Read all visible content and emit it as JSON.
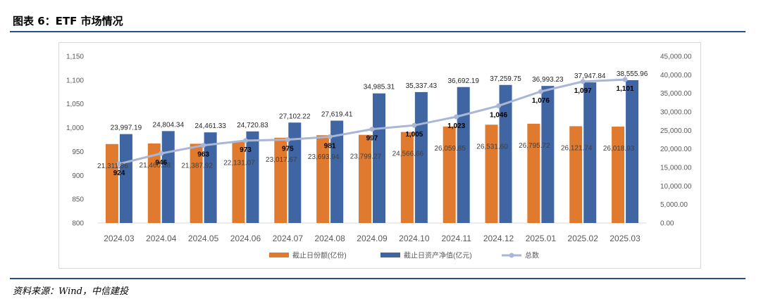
{
  "header": {
    "title": "图表 6：ETF 市场情况"
  },
  "footer": {
    "source": "资料来源：Wind，中信建投"
  },
  "colors": {
    "bar1": "#e07a2e",
    "bar2": "#3f65a3",
    "line": "#a9b6d6",
    "rule": "#2a5082"
  },
  "chart_data": {
    "type": "bar",
    "categories": [
      "2024.03",
      "2024.04",
      "2024.05",
      "2024.06",
      "2024.07",
      "2024.08",
      "2024.09",
      "2024.10",
      "2024.11",
      "2024.12",
      "2025.01",
      "2025.02",
      "2025.03"
    ],
    "series": [
      {
        "name": "截止日份额(亿份)",
        "type": "bar",
        "axis": "right",
        "values": [
          21311.86,
          21460.38,
          21387.92,
          22131.07,
          23017.67,
          23693.94,
          23799.27,
          24566.66,
          26059.85,
          26531.6,
          26795.72,
          26121.74,
          26018.93
        ],
        "labels": [
          "21,311.86",
          "21,460.38",
          "21,387.92",
          "22,131.07",
          "23,017.67",
          "23,693.94",
          "23,799.27",
          "24,566.66",
          "26,059.85",
          "26,531.60",
          "26,795.72",
          "26,121.74",
          "26,018.93"
        ]
      },
      {
        "name": "截止日资产净值(亿元)",
        "type": "bar",
        "axis": "right",
        "values": [
          23997.19,
          24804.34,
          24461.33,
          24720.83,
          27102.22,
          27619.41,
          34985.31,
          35337.43,
          36692.19,
          37259.75,
          36993.23,
          37947.84,
          38555.96
        ],
        "labels": [
          "23,997.19",
          "24,804.34",
          "24,461.33",
          "24,720.83",
          "27,102.22",
          "27,619.41",
          "34,985.31",
          "35,337.43",
          "36,692.19",
          "37,259.75",
          "36,993.23",
          "37,947.84",
          "38,555.96"
        ]
      },
      {
        "name": "总数",
        "type": "line",
        "axis": "left",
        "values": [
          924,
          946,
          963,
          973,
          975,
          981,
          997,
          1005,
          1023,
          1046,
          1076,
          1097,
          1101
        ],
        "labels": [
          "924",
          "946",
          "963",
          "973",
          "975",
          "981",
          "997",
          "1,005",
          "1,023",
          "1,046",
          "1,076",
          "1,097",
          "1,101"
        ]
      }
    ],
    "y_left": {
      "range": [
        800,
        1150
      ],
      "ticks": [
        "800",
        "850",
        "900",
        "950",
        "1,000",
        "1,050",
        "1,100",
        "1,150"
      ]
    },
    "y_right": {
      "range": [
        0,
        45000
      ],
      "ticks": [
        "0.00",
        "5,000.00",
        "10,000.00",
        "15,000.00",
        "20,000.00",
        "25,000.00",
        "30,000.00",
        "35,000.00",
        "40,000.00",
        "45,000.00"
      ]
    },
    "grid": false,
    "legend_position": "bottom"
  }
}
